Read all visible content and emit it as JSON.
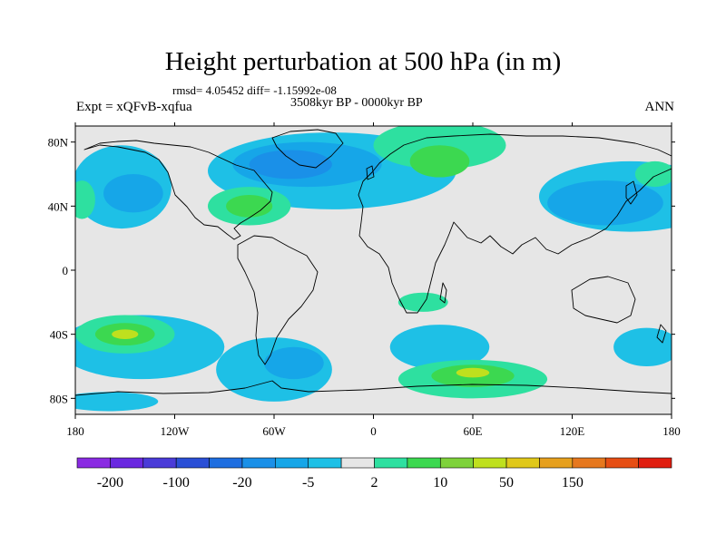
{
  "map": {
    "title": "Height perturbation at 500 hPa (in m)",
    "stats": "rmsd= 4.05452 diff= -1.15992e-08",
    "period": "3508kyr BP - 0000kyr BP",
    "experiment": "Expt = xQFvB-xqfua",
    "season": "ANN",
    "projection": "cylindrical equidistant",
    "lon_range": [
      -180,
      180
    ],
    "lat_range": [
      -90,
      90
    ],
    "lon_ticks": [
      {
        "value": -180,
        "label": "180"
      },
      {
        "value": -120,
        "label": "120W"
      },
      {
        "value": -60,
        "label": "60W"
      },
      {
        "value": 0,
        "label": "0"
      },
      {
        "value": 60,
        "label": "60E"
      },
      {
        "value": 120,
        "label": "120E"
      },
      {
        "value": 180,
        "label": "180"
      }
    ],
    "lat_ticks": [
      {
        "value": 80,
        "label": "80N"
      },
      {
        "value": 40,
        "label": "40N"
      },
      {
        "value": 0,
        "label": "0"
      },
      {
        "value": -40,
        "label": "40S"
      },
      {
        "value": -80,
        "label": "80S"
      }
    ],
    "colorbar": {
      "colors": [
        "#8a2be2",
        "#6a28e0",
        "#4a3bd8",
        "#2a4fd6",
        "#1e6ee0",
        "#1a90e8",
        "#16a6e8",
        "#1ec0e6",
        "#e6e6e6",
        "#2ee0a0",
        "#3cd850",
        "#7ed23a",
        "#bfe01e",
        "#e0c81a",
        "#e6a01e",
        "#e6781e",
        "#e64e14",
        "#e01e10"
      ],
      "labels": [
        {
          "index": 1,
          "text": "-200"
        },
        {
          "index": 3,
          "text": "-100"
        },
        {
          "index": 5,
          "text": "-20"
        },
        {
          "index": 7,
          "text": "-5"
        },
        {
          "index": 9,
          "text": "2"
        },
        {
          "index": 11,
          "text": "10"
        },
        {
          "index": 13,
          "text": "50"
        },
        {
          "index": 15,
          "text": "150"
        }
      ]
    },
    "anomaly_regions": [
      {
        "level": "negative-weak",
        "color": "#1ec0e6",
        "lon": -25,
        "lat": 62,
        "rlon": 75,
        "rlat": 24
      },
      {
        "level": "negative-mid",
        "color": "#16a6e8",
        "lon": -40,
        "lat": 66,
        "rlon": 45,
        "rlat": 14
      },
      {
        "level": "negative-strong",
        "color": "#1a90e8",
        "lon": -50,
        "lat": 66,
        "rlon": 25,
        "rlat": 9
      },
      {
        "level": "negative-weak",
        "color": "#1ec0e6",
        "lon": 155,
        "lat": 46,
        "rlon": 55,
        "rlat": 22
      },
      {
        "level": "negative-mid",
        "color": "#16a6e8",
        "lon": 140,
        "lat": 42,
        "rlon": 35,
        "rlat": 14
      },
      {
        "level": "negative-weak",
        "color": "#1ec0e6",
        "lon": -152,
        "lat": 52,
        "rlon": 30,
        "rlat": 26
      },
      {
        "level": "negative-mid",
        "color": "#16a6e8",
        "lon": -145,
        "lat": 48,
        "rlon": 18,
        "rlat": 12
      },
      {
        "level": "positive-weak",
        "color": "#2ee0a0",
        "lon": 40,
        "lat": 78,
        "rlon": 40,
        "rlat": 15
      },
      {
        "level": "positive-mid",
        "color": "#3cd850",
        "lon": 40,
        "lat": 68,
        "rlon": 18,
        "rlat": 10
      },
      {
        "level": "positive-weak",
        "color": "#2ee0a0",
        "lon": -75,
        "lat": 40,
        "rlon": 25,
        "rlat": 12
      },
      {
        "level": "positive-mid",
        "color": "#3cd850",
        "lon": -75,
        "lat": 40,
        "rlon": 14,
        "rlat": 7
      },
      {
        "level": "positive-weak",
        "color": "#2ee0a0",
        "lon": -176,
        "lat": 44,
        "rlon": 8,
        "rlat": 12
      },
      {
        "level": "positive-weak",
        "color": "#2ee0a0",
        "lon": 170,
        "lat": 60,
        "rlon": 12,
        "rlat": 8
      },
      {
        "level": "negative-weak",
        "color": "#1ec0e6",
        "lon": -140,
        "lat": -48,
        "rlon": 50,
        "rlat": 20
      },
      {
        "level": "positive-weak",
        "color": "#2ee0a0",
        "lon": -150,
        "lat": -40,
        "rlon": 30,
        "rlat": 12
      },
      {
        "level": "positive-mid",
        "color": "#3cd850",
        "lon": -150,
        "lat": -40,
        "rlon": 18,
        "rlat": 7
      },
      {
        "level": "positive-strong",
        "color": "#bfe01e",
        "lon": -150,
        "lat": -40,
        "rlon": 8,
        "rlat": 3
      },
      {
        "level": "negative-weak",
        "color": "#1ec0e6",
        "lon": -60,
        "lat": -62,
        "rlon": 35,
        "rlat": 20
      },
      {
        "level": "negative-mid",
        "color": "#16a6e8",
        "lon": -48,
        "lat": -58,
        "rlon": 18,
        "rlat": 10
      },
      {
        "level": "negative-weak",
        "color": "#1ec0e6",
        "lon": 40,
        "lat": -48,
        "rlon": 30,
        "rlat": 14
      },
      {
        "level": "positive-weak",
        "color": "#2ee0a0",
        "lon": 60,
        "lat": -68,
        "rlon": 45,
        "rlat": 12
      },
      {
        "level": "positive-mid",
        "color": "#3cd850",
        "lon": 60,
        "lat": -66,
        "rlon": 25,
        "rlat": 7
      },
      {
        "level": "positive-strong",
        "color": "#bfe01e",
        "lon": 60,
        "lat": -64,
        "rlon": 10,
        "rlat": 3
      },
      {
        "level": "positive-weak",
        "color": "#2ee0a0",
        "lon": 30,
        "lat": -20,
        "rlon": 15,
        "rlat": 6
      },
      {
        "level": "negative-weak",
        "color": "#1ec0e6",
        "lon": 165,
        "lat": -48,
        "rlon": 20,
        "rlat": 12
      },
      {
        "level": "negative-weak",
        "color": "#1ec0e6",
        "lon": -160,
        "lat": -82,
        "rlon": 30,
        "rlat": 6
      }
    ]
  }
}
